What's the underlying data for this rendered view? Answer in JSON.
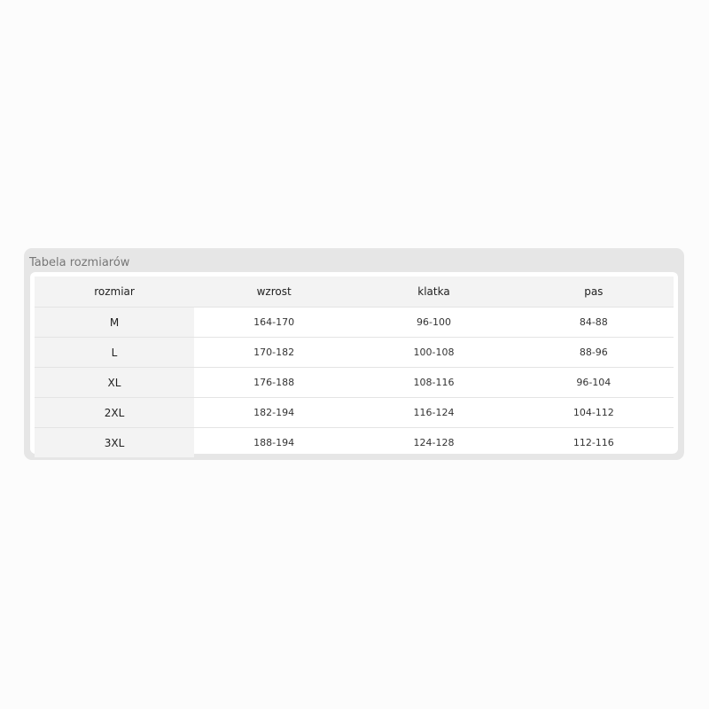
{
  "title": "Tabela rozmiarów",
  "headers": [
    "rozmiar",
    "wzrost",
    "klatka",
    "pas"
  ],
  "rows": [
    [
      "M",
      "164-170",
      "96-100",
      "84-88"
    ],
    [
      "L",
      "170-182",
      "100-108",
      "88-96"
    ],
    [
      "XL",
      "176-188",
      "108-116",
      "96-104"
    ],
    [
      "2XL",
      "182-194",
      "116-124",
      "104-112"
    ],
    [
      "3XL",
      "188-194",
      "124-128",
      "112-116"
    ]
  ]
}
